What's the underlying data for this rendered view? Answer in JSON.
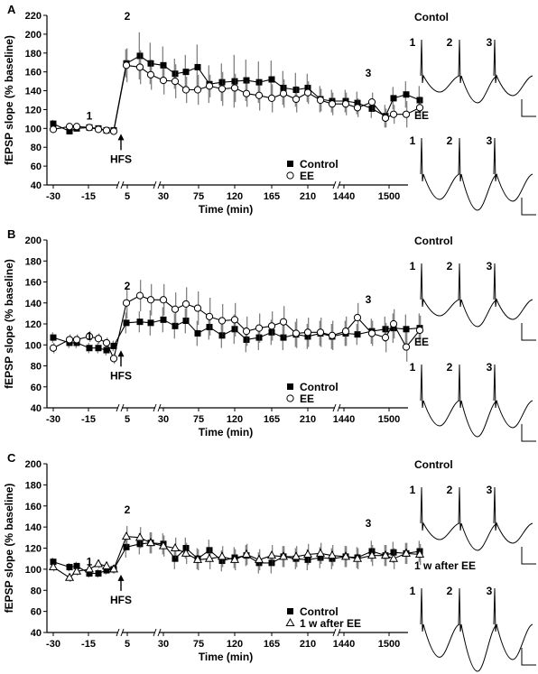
{
  "chart_data": [
    {
      "type": "line",
      "panel_label": "A",
      "ylabel": "fEPSP slope (% baseline)",
      "xlabel": "Time (min)",
      "ylim": [
        40,
        220
      ],
      "yticks": [
        "40",
        "60",
        "80",
        "100",
        "120",
        "140",
        "160",
        "180",
        "200",
        "220"
      ],
      "xticks": [
        "-30",
        "-15",
        "5",
        "30",
        "75",
        "120",
        "165",
        "210",
        "1440",
        "1500"
      ],
      "hfs_label": "HFS",
      "point_labels": [
        "1",
        "2",
        "3"
      ],
      "legend": [
        {
          "name": "Control",
          "marker": "square"
        },
        {
          "name": "EE",
          "marker": "circle"
        }
      ],
      "series": [
        {
          "name": "Control",
          "marker": "square",
          "values": [
            105,
            97,
            100,
            101,
            100,
            98,
            98,
            169,
            177,
            169,
            167,
            158,
            160,
            165,
            147,
            149,
            150,
            151,
            149,
            152,
            143,
            141,
            143,
            131,
            129,
            129,
            127,
            121,
            113,
            132,
            136,
            130
          ],
          "errors": [
            4,
            3,
            3,
            3,
            3,
            3,
            3,
            15,
            25,
            22,
            20,
            16,
            18,
            24,
            20,
            20,
            28,
            22,
            22,
            20,
            18,
            18,
            15,
            14,
            12,
            12,
            12,
            10,
            12,
            12,
            14,
            15
          ]
        },
        {
          "name": "EE",
          "marker": "circle",
          "values": [
            99,
            102,
            102,
            101,
            99,
            98,
            97,
            167,
            165,
            157,
            151,
            150,
            141,
            141,
            145,
            142,
            143,
            137,
            135,
            132,
            137,
            131,
            138,
            130,
            126,
            126,
            122,
            128,
            111,
            115,
            115,
            122
          ],
          "errors": [
            3,
            3,
            3,
            3,
            3,
            3,
            3,
            18,
            18,
            16,
            15,
            18,
            14,
            16,
            12,
            18,
            15,
            14,
            16,
            15,
            15,
            14,
            12,
            12,
            12,
            12,
            10,
            10,
            10,
            10,
            14,
            12
          ]
        }
      ]
    },
    {
      "type": "line",
      "panel_label": "B",
      "ylabel": "fEPSP slope (% baseline)",
      "xlabel": "Time (min)",
      "ylim": [
        40,
        200
      ],
      "yticks": [
        "40",
        "60",
        "80",
        "100",
        "120",
        "140",
        "160",
        "180",
        "200"
      ],
      "xticks": [
        "-30",
        "-15",
        "5",
        "30",
        "75",
        "120",
        "165",
        "210",
        "1440",
        "1500"
      ],
      "hfs_label": "HFS",
      "point_labels": [
        "1",
        "2",
        "3"
      ],
      "legend": [
        {
          "name": "Control",
          "marker": "square"
        },
        {
          "name": "EE",
          "marker": "circle"
        }
      ],
      "series": [
        {
          "name": "Control",
          "marker": "square",
          "values": [
            107,
            102,
            102,
            97,
            97,
            95,
            99,
            121,
            122,
            121,
            124,
            118,
            123,
            111,
            117,
            109,
            115,
            105,
            107,
            112,
            107,
            110,
            108,
            111,
            108,
            111,
            110,
            113,
            115,
            116,
            115,
            116
          ],
          "errors": [
            5,
            5,
            5,
            5,
            5,
            5,
            5,
            10,
            10,
            12,
            12,
            12,
            12,
            12,
            12,
            12,
            14,
            12,
            12,
            12,
            12,
            12,
            12,
            12,
            12,
            12,
            10,
            12,
            12,
            14,
            14,
            14
          ]
        },
        {
          "name": "EE",
          "marker": "circle",
          "values": [
            97,
            105,
            105,
            108,
            106,
            102,
            87,
            140,
            147,
            143,
            143,
            134,
            139,
            135,
            127,
            123,
            124,
            113,
            116,
            118,
            122,
            111,
            112,
            112,
            109,
            113,
            126,
            111,
            107,
            120,
            98,
            114
          ],
          "errors": [
            5,
            5,
            5,
            5,
            5,
            5,
            5,
            15,
            15,
            15,
            15,
            16,
            16,
            16,
            18,
            16,
            16,
            14,
            14,
            14,
            15,
            14,
            14,
            14,
            14,
            14,
            14,
            12,
            14,
            14,
            14,
            14
          ]
        }
      ]
    },
    {
      "type": "line",
      "panel_label": "C",
      "ylabel": "fEPSP slope (% baseline)",
      "xlabel": "Time (min)",
      "ylim": [
        40,
        200
      ],
      "yticks": [
        "40",
        "60",
        "80",
        "100",
        "120",
        "140",
        "160",
        "180",
        "200"
      ],
      "xticks": [
        "-30",
        "-15",
        "5",
        "30",
        "75",
        "120",
        "165",
        "210",
        "1440",
        "1500"
      ],
      "hfs_label": "HFS",
      "point_labels": [
        "1",
        "2",
        "3"
      ],
      "legend": [
        {
          "name": "Control",
          "marker": "square"
        },
        {
          "name": "1 w after EE",
          "marker": "triangle"
        }
      ],
      "series": [
        {
          "name": "Control",
          "marker": "square",
          "values": [
            107,
            102,
            103,
            96,
            96,
            99,
            100,
            121,
            124,
            125,
            124,
            110,
            120,
            110,
            118,
            108,
            111,
            113,
            106,
            106,
            112,
            110,
            109,
            111,
            110,
            112,
            111,
            117,
            113,
            116,
            115,
            117
          ],
          "errors": [
            4,
            4,
            4,
            4,
            4,
            4,
            4,
            10,
            10,
            10,
            10,
            10,
            10,
            10,
            10,
            10,
            10,
            10,
            10,
            10,
            10,
            10,
            10,
            10,
            10,
            10,
            10,
            10,
            10,
            10,
            10,
            10
          ]
        },
        {
          "name": "1 w after EE",
          "marker": "triangle",
          "values": [
            102,
            92,
            98,
            100,
            105,
            103,
            100,
            131,
            130,
            125,
            122,
            120,
            115,
            109,
            110,
            112,
            109,
            114,
            109,
            113,
            112,
            112,
            114,
            115,
            113,
            112,
            110,
            113,
            113,
            110,
            115,
            114
          ],
          "errors": [
            4,
            4,
            4,
            4,
            4,
            4,
            4,
            10,
            10,
            10,
            10,
            10,
            10,
            10,
            10,
            10,
            10,
            10,
            10,
            10,
            10,
            10,
            10,
            10,
            10,
            10,
            10,
            10,
            10,
            10,
            10,
            10
          ]
        }
      ]
    }
  ],
  "traces": [
    {
      "panel": "A",
      "upper_label": "Contol",
      "lower_label": "EE",
      "numbers": [
        "1",
        "2",
        "3"
      ]
    },
    {
      "panel": "B",
      "upper_label": "Control",
      "lower_label": "EE",
      "numbers": [
        "1",
        "2",
        "3"
      ]
    },
    {
      "panel": "C",
      "upper_label": "Control",
      "lower_label": "1 w after EE",
      "numbers": [
        "1",
        "2",
        "3"
      ]
    }
  ]
}
